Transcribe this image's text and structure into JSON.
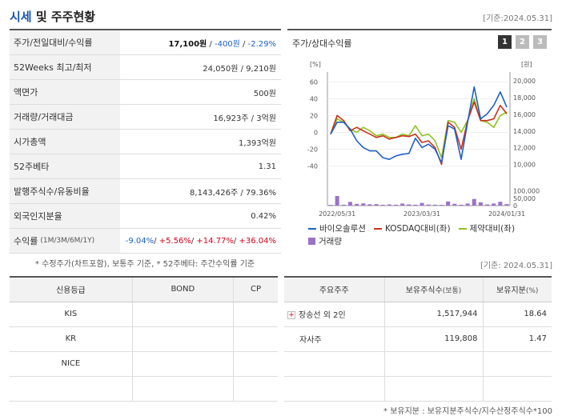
{
  "header": {
    "title_main": "시세",
    "title_rest": " 및 주주현황",
    "date": "[기준:2024.05.31]"
  },
  "stats": [
    {
      "label": "주가/전일대비/수익률",
      "value": "17,100원 / -400원 / -2.29%"
    },
    {
      "label": "52Weeks 최고/최저",
      "value": "24,050원 / 9,210원"
    },
    {
      "label": "액면가",
      "value": "500원"
    },
    {
      "label": "거래량/거래대금",
      "value": "16,923주 / 3억원"
    },
    {
      "label": "시가총액",
      "value": "1,393억원"
    },
    {
      "label": "52주베타",
      "value": "1.31"
    },
    {
      "label": "발행주식수/유동비율",
      "value": "8,143,426주 / 79.36%"
    },
    {
      "label": "외국인지분율",
      "value": "0.42%"
    },
    {
      "label": "수익률",
      "label_small": "(1M/3M/6M/1Y)",
      "value": "-9.04%/ +5.56%/ +14.77%/ +36.04%"
    }
  ],
  "price": {
    "main": "17,100원",
    "change": "-400원",
    "rate": "-2.29%"
  },
  "returns": {
    "m1": "-9.04%",
    "m3": "+5.56%",
    "m6": "+14.77%",
    "y1": "+36.04%"
  },
  "note_left": "* 수정주가(차트포함), 보통주 기준, * 52주베타: 주간수익률 기준",
  "chart_panel": {
    "title": "주가/상대수익률",
    "pages": [
      "1",
      "2",
      "3"
    ],
    "legend": [
      "바이오솔루션",
      "KOSDAQ대비(좌)",
      "제약대비(좌)",
      "거래량"
    ],
    "colors": {
      "stock": "#1f5fc7",
      "kosdaq": "#c9311d",
      "pharma": "#8fc21d",
      "volume": "#9b72c9"
    }
  },
  "chart_data": {
    "type": "line",
    "left_axis_unit": "[%]",
    "right_axis_unit": "[원]",
    "left_ticks": [
      "60",
      "40",
      "20",
      "0",
      "-20",
      "-40"
    ],
    "right_price_ticks": [
      "20,000",
      "18,000",
      "16,000",
      "14,000",
      "12,000",
      "10,000"
    ],
    "right_volume_ticks": [
      "100,000",
      "50,000",
      "0"
    ],
    "x_tick_labels": [
      "2022/05/31",
      "2023/03/31",
      "2024/01/31"
    ],
    "x_tick_index": [
      1,
      14,
      27
    ],
    "ylim_left": [
      -48,
      66
    ],
    "ylim_price": [
      9000,
      20500
    ],
    "ylim_volume": [
      0,
      130000
    ],
    "series": [
      {
        "name": "바이오솔루션",
        "values": [
          -2,
          12,
          12,
          4,
          -10,
          -18,
          -22,
          -22,
          -30,
          -32,
          -28,
          -26,
          -25,
          -7,
          -18,
          -14,
          -20,
          -36,
          8,
          4,
          -32,
          12,
          54,
          16,
          22,
          32,
          48,
          30
        ]
      },
      {
        "name": "KOSDAQ대비(좌)",
        "values": [
          -2,
          20,
          14,
          2,
          6,
          2,
          -2,
          -6,
          -4,
          -8,
          -6,
          -4,
          -5,
          -2,
          -12,
          -10,
          -18,
          -38,
          12,
          6,
          -20,
          14,
          36,
          14,
          14,
          16,
          32,
          22
        ]
      },
      {
        "name": "제약대비(좌)",
        "values": [
          -2,
          16,
          12,
          4,
          0,
          6,
          2,
          -4,
          -2,
          -6,
          -6,
          -2,
          -4,
          8,
          -4,
          -2,
          -10,
          -30,
          14,
          12,
          0,
          14,
          40,
          14,
          12,
          6,
          20,
          24
        ]
      },
      {
        "name": "거래량",
        "values": [
          5000,
          65000,
          6000,
          25000,
          12000,
          15000,
          9000,
          10000,
          6000,
          8000,
          6000,
          14000,
          8000,
          6000,
          18000,
          7000,
          6000,
          5000,
          28000,
          12000,
          6000,
          14000,
          45000,
          22000,
          8000,
          14000,
          26000,
          10000
        ]
      }
    ]
  },
  "date_right": "[기준: 2024.05.31]",
  "credit": {
    "headers": [
      "신용등급",
      "BOND",
      "CP"
    ],
    "rows": [
      [
        "KIS",
        "",
        ""
      ],
      [
        "KR",
        "",
        ""
      ],
      [
        "NICE",
        "",
        ""
      ],
      [
        "",
        "",
        ""
      ]
    ]
  },
  "holders": {
    "headers": [
      "주요주주",
      "보유주식수",
      "(보통)",
      "보유지분",
      "(%)"
    ],
    "rows": [
      {
        "name": "장송선 외 2인",
        "shares": "1,517,944",
        "pct": "18.64",
        "expand": "+"
      },
      {
        "name": "자사주",
        "shares": "119,808",
        "pct": "1.47",
        "expand": ""
      },
      {
        "name": "",
        "shares": "",
        "pct": "",
        "expand": ""
      },
      {
        "name": "",
        "shares": "",
        "pct": "",
        "expand": ""
      }
    ]
  },
  "note_right": "* 보유지분 : 보유지분주식수/지수산정주식수*100"
}
